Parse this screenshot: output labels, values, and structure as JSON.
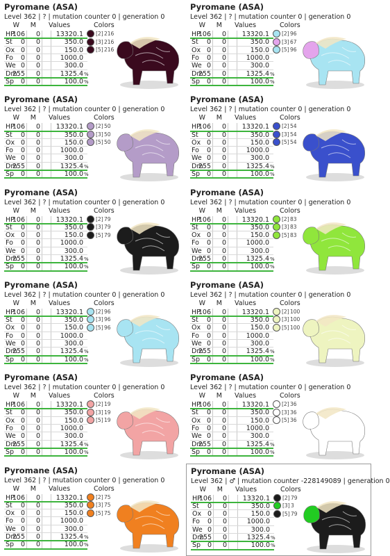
{
  "cards": [
    {
      "title": "Pyromane (ASA)",
      "subtitle": "Level 362 | ? | mutation counter 0 | generation 0",
      "headers": [
        "W",
        "M",
        "Values",
        "Colors"
      ],
      "rows": [
        [
          "HP",
          "106",
          "0",
          "13320.1"
        ],
        [
          "St",
          "0",
          "0",
          "350.0"
        ],
        [
          "Ox",
          "0",
          "0",
          "150.0"
        ],
        [
          "Fo",
          "0",
          "0",
          "1000.0"
        ],
        [
          "We",
          "0",
          "0",
          "300.0"
        ],
        [
          "Dm",
          "255",
          "0",
          "1325.4",
          "%"
        ],
        [
          "Sp",
          "0",
          "0",
          "100.0",
          "%"
        ]
      ],
      "colors": [
        {
          "slot": "[2]",
          "value": "216",
          "color": "#3a0a1e"
        },
        {
          "slot": "[3]",
          "value": "216",
          "color": "#3a0a1e"
        },
        {
          "slot": "[5]",
          "value": "216",
          "color": "#3a0a1e"
        }
      ]
    },
    {
      "title": "Pyromane (ASA)",
      "subtitle": "Level 362 | ? | mutation counter 0 | generation 0",
      "headers": [
        "W",
        "M",
        "Values",
        "Colors"
      ],
      "rows": [
        [
          "HP",
          "106",
          "0",
          "13320.1"
        ],
        [
          "St",
          "0",
          "0",
          "350.0"
        ],
        [
          "Ox",
          "0",
          "0",
          "150.0"
        ],
        [
          "Fo",
          "0",
          "0",
          "1000.0"
        ],
        [
          "We",
          "0",
          "0",
          "300.0"
        ],
        [
          "Dm",
          "255",
          "0",
          "1325.4",
          "%"
        ],
        [
          "Sp",
          "0",
          "0",
          "100.0",
          "%"
        ]
      ],
      "colors": [
        {
          "slot": "[2]",
          "value": "96",
          "color": "#a8e4f2"
        },
        {
          "slot": "[3]",
          "value": "67",
          "color": "#e4a4ec"
        },
        {
          "slot": "[5]",
          "value": "96",
          "color": "#a8e4f2"
        }
      ]
    },
    {
      "title": "Pyromane (ASA)",
      "subtitle": "Level 362 | ? | mutation counter 0 | generation 0",
      "headers": [
        "W",
        "M",
        "Values",
        "Colors"
      ],
      "rows": [
        [
          "HP",
          "106",
          "0",
          "13320.1"
        ],
        [
          "St",
          "0",
          "0",
          "350.0"
        ],
        [
          "Ox",
          "0",
          "0",
          "150.0"
        ],
        [
          "Fo",
          "0",
          "0",
          "1000.0"
        ],
        [
          "We",
          "0",
          "0",
          "300.0"
        ],
        [
          "Dm",
          "255",
          "0",
          "1325.4",
          "%"
        ],
        [
          "Sp",
          "0",
          "0",
          "100.0",
          "%"
        ]
      ],
      "colors": [
        {
          "slot": "[2]",
          "value": "50",
          "color": "#b49cc8"
        },
        {
          "slot": "[3]",
          "value": "50",
          "color": "#b49cc8"
        },
        {
          "slot": "[5]",
          "value": "50",
          "color": "#b49cc8"
        }
      ]
    },
    {
      "title": "Pyromane (ASA)",
      "subtitle": "Level 362 | ? | mutation counter 0 | generation 0",
      "headers": [
        "W",
        "M",
        "Values",
        "Colors"
      ],
      "rows": [
        [
          "HP",
          "106",
          "0",
          "13320.1"
        ],
        [
          "St",
          "0",
          "0",
          "350.0"
        ],
        [
          "Ox",
          "0",
          "0",
          "150.0"
        ],
        [
          "Fo",
          "0",
          "0",
          "1000.0"
        ],
        [
          "We",
          "0",
          "0",
          "300.0"
        ],
        [
          "Dm",
          "255",
          "0",
          "1325.4",
          "%"
        ],
        [
          "Sp",
          "0",
          "0",
          "100.0",
          "%"
        ]
      ],
      "colors": [
        {
          "slot": "[2]",
          "value": "54",
          "color": "#3a50cc"
        },
        {
          "slot": "[3]",
          "value": "54",
          "color": "#3a50cc"
        },
        {
          "slot": "[5]",
          "value": "54",
          "color": "#3a50cc"
        }
      ]
    },
    {
      "title": "Pyromane (ASA)",
      "subtitle": "Level 362 | ? | mutation counter 0 | generation 0",
      "headers": [
        "W",
        "M",
        "Values",
        "Colors"
      ],
      "rows": [
        [
          "HP",
          "106",
          "0",
          "13320.1"
        ],
        [
          "St",
          "0",
          "0",
          "350.0"
        ],
        [
          "Ox",
          "0",
          "0",
          "150.0"
        ],
        [
          "Fo",
          "0",
          "0",
          "1000.0"
        ],
        [
          "We",
          "0",
          "0",
          "300.0"
        ],
        [
          "Dm",
          "255",
          "0",
          "1325.4",
          "%"
        ],
        [
          "Sp",
          "0",
          "0",
          "100.0",
          "%"
        ]
      ],
      "colors": [
        {
          "slot": "[2]",
          "value": "79",
          "color": "#1c1c1c"
        },
        {
          "slot": "[3]",
          "value": "79",
          "color": "#1c1c1c"
        },
        {
          "slot": "[5]",
          "value": "79",
          "color": "#1c1c1c"
        }
      ]
    },
    {
      "title": "Pyromane (ASA)",
      "subtitle": "Level 362 | ? | mutation counter 0 | generation 0",
      "headers": [
        "W",
        "M",
        "Values",
        "Colors"
      ],
      "rows": [
        [
          "HP",
          "106",
          "0",
          "13320.1"
        ],
        [
          "St",
          "0",
          "0",
          "350.0"
        ],
        [
          "Ox",
          "0",
          "0",
          "150.0"
        ],
        [
          "Fo",
          "0",
          "0",
          "1000.0"
        ],
        [
          "We",
          "0",
          "0",
          "300.0"
        ],
        [
          "Dm",
          "255",
          "0",
          "1325.4",
          "%"
        ],
        [
          "Sp",
          "0",
          "0",
          "100.0",
          "%"
        ]
      ],
      "colors": [
        {
          "slot": "[2]",
          "value": "83",
          "color": "#90e63c"
        },
        {
          "slot": "[3]",
          "value": "83",
          "color": "#90e63c"
        },
        {
          "slot": "[5]",
          "value": "83",
          "color": "#90e63c"
        }
      ]
    },
    {
      "title": "Pyromane (ASA)",
      "subtitle": "Level 362 | ? | mutation counter 0 | generation 0",
      "headers": [
        "W",
        "M",
        "Values",
        "Colors"
      ],
      "rows": [
        [
          "HP",
          "106",
          "0",
          "13320.1"
        ],
        [
          "St",
          "0",
          "0",
          "350.0"
        ],
        [
          "Ox",
          "0",
          "0",
          "150.0"
        ],
        [
          "Fo",
          "0",
          "0",
          "1000.0"
        ],
        [
          "We",
          "0",
          "0",
          "300.0"
        ],
        [
          "Dm",
          "255",
          "0",
          "1325.4",
          "%"
        ],
        [
          "Sp",
          "0",
          "0",
          "100.0",
          "%"
        ]
      ],
      "colors": [
        {
          "slot": "[2]",
          "value": "96",
          "color": "#a8e4f2"
        },
        {
          "slot": "[3]",
          "value": "96",
          "color": "#a8e4f2"
        },
        {
          "slot": "[5]",
          "value": "96",
          "color": "#a8e4f2"
        }
      ]
    },
    {
      "title": "Pyromane (ASA)",
      "subtitle": "Level 362 | ? | mutation counter 0 | generation 0",
      "headers": [
        "W",
        "M",
        "Values",
        "Colors"
      ],
      "rows": [
        [
          "HP",
          "106",
          "0",
          "13320.1"
        ],
        [
          "St",
          "0",
          "0",
          "350.0"
        ],
        [
          "Ox",
          "0",
          "0",
          "150.0"
        ],
        [
          "Fo",
          "0",
          "0",
          "1000.0"
        ],
        [
          "We",
          "0",
          "0",
          "300.0"
        ],
        [
          "Dm",
          "255",
          "0",
          "1325.4",
          "%"
        ],
        [
          "Sp",
          "0",
          "0",
          "100.0",
          "%"
        ]
      ],
      "colors": [
        {
          "slot": "[2]",
          "value": "100",
          "color": "#eef4c0"
        },
        {
          "slot": "[3]",
          "value": "100",
          "color": "#eef4c0"
        },
        {
          "slot": "[5]",
          "value": "100",
          "color": "#eef4c0"
        }
      ]
    },
    {
      "title": "Pyromane (ASA)",
      "subtitle": "Level 362 | ? | mutation counter 0 | generation 0",
      "headers": [
        "W",
        "M",
        "Values",
        "Colors"
      ],
      "rows": [
        [
          "HP",
          "106",
          "0",
          "13320.1"
        ],
        [
          "St",
          "0",
          "0",
          "350.0"
        ],
        [
          "Ox",
          "0",
          "0",
          "150.0"
        ],
        [
          "Fo",
          "0",
          "0",
          "1000.0"
        ],
        [
          "We",
          "0",
          "0",
          "300.0"
        ],
        [
          "Dm",
          "255",
          "0",
          "1325.4",
          "%"
        ],
        [
          "Sp",
          "0",
          "0",
          "100.0",
          "%"
        ]
      ],
      "colors": [
        {
          "slot": "[2]",
          "value": "19",
          "color": "#f2a4a4"
        },
        {
          "slot": "[3]",
          "value": "19",
          "color": "#f2a4a4"
        },
        {
          "slot": "[5]",
          "value": "19",
          "color": "#f2a4a4"
        }
      ]
    },
    {
      "title": "Pyromane (ASA)",
      "subtitle": "Level 362 | ? | mutation counter 0 | generation 0",
      "headers": [
        "W",
        "M",
        "Values",
        "Colors"
      ],
      "rows": [
        [
          "HP",
          "106",
          "0",
          "13320.1"
        ],
        [
          "St",
          "0",
          "0",
          "350.0"
        ],
        [
          "Ox",
          "0",
          "0",
          "150.0"
        ],
        [
          "Fo",
          "0",
          "0",
          "1000.0"
        ],
        [
          "We",
          "0",
          "0",
          "300.0"
        ],
        [
          "Dm",
          "255",
          "0",
          "1325.4",
          "%"
        ],
        [
          "Sp",
          "0",
          "0",
          "100.0",
          "%"
        ]
      ],
      "colors": [
        {
          "slot": "[2]",
          "value": "36",
          "color": "#ffffff"
        },
        {
          "slot": "[3]",
          "value": "36",
          "color": "#ffffff"
        },
        {
          "slot": "[5]",
          "value": "36",
          "color": "#ffffff"
        }
      ]
    },
    {
      "title": "Pyromane (ASA)",
      "subtitle": "Level 362 | ? | mutation counter 0 | generation 0",
      "headers": [
        "W",
        "M",
        "Values",
        "Colors"
      ],
      "rows": [
        [
          "HP",
          "106",
          "0",
          "13320.1"
        ],
        [
          "St",
          "0",
          "0",
          "350.0"
        ],
        [
          "Ox",
          "0",
          "0",
          "150.0"
        ],
        [
          "Fo",
          "0",
          "0",
          "1000.0"
        ],
        [
          "We",
          "0",
          "0",
          "300.0"
        ],
        [
          "Dm",
          "255",
          "0",
          "1325.4",
          "%"
        ],
        [
          "Sp",
          "0",
          "0",
          "100.0",
          "%"
        ]
      ],
      "colors": [
        {
          "slot": "[2]",
          "value": "75",
          "color": "#f08020"
        },
        {
          "slot": "[3]",
          "value": "75",
          "color": "#f08020"
        },
        {
          "slot": "[5]",
          "value": "75",
          "color": "#f08020"
        }
      ]
    },
    {
      "title": "Pyromane (ASA)",
      "subtitle": "Level 362 | ♂ | mutation counter -228149089 | generation 0",
      "headers": [
        "W",
        "M",
        "Values",
        "Colors"
      ],
      "rows": [
        [
          "HP",
          "106",
          "0",
          "13320.1"
        ],
        [
          "St",
          "0",
          "0",
          "350.0"
        ],
        [
          "Ox",
          "0",
          "0",
          "150.0"
        ],
        [
          "Fo",
          "0",
          "0",
          "1000.0"
        ],
        [
          "We",
          "0",
          "0",
          "300.0"
        ],
        [
          "Dm",
          "255",
          "0",
          "1325.4",
          "%"
        ],
        [
          "Sp",
          "0",
          "0",
          "100.0",
          "%"
        ]
      ],
      "colors": [
        {
          "slot": "[2]",
          "value": "79",
          "color": "#1c1c1c"
        },
        {
          "slot": "[3]",
          "value": "3",
          "color": "#22cc22"
        },
        {
          "slot": "[5]",
          "value": "79",
          "color": "#1c1c1c"
        }
      ]
    }
  ]
}
